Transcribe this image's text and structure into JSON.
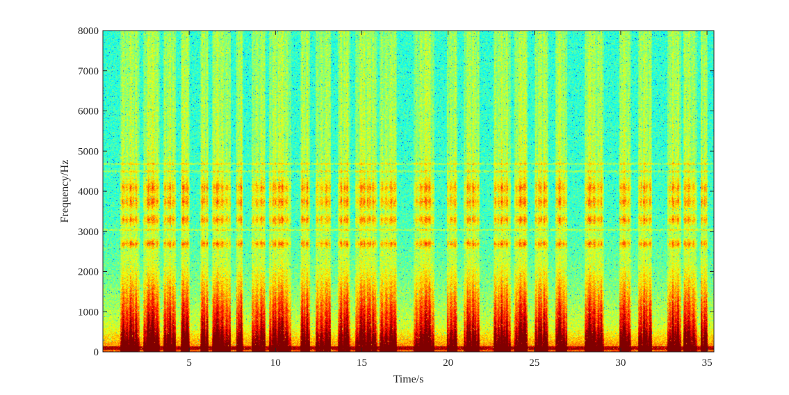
{
  "chart_data": {
    "type": "heatmap",
    "subtype": "spectrogram",
    "title": "",
    "xlabel": "Time/s",
    "ylabel": "Frequency/Hz",
    "xlim": [
      0,
      35.4
    ],
    "ylim": [
      0,
      8000
    ],
    "xticks": [
      5,
      10,
      15,
      20,
      25,
      30,
      35
    ],
    "xtick_labels": [
      "5",
      "10",
      "15",
      "20",
      "25",
      "30",
      "35"
    ],
    "yticks": [
      0,
      1000,
      2000,
      3000,
      4000,
      5000,
      6000,
      7000,
      8000
    ],
    "ytick_labels": [
      "0",
      "1000",
      "2000",
      "3000",
      "4000",
      "5000",
      "6000",
      "7000",
      "8000"
    ],
    "colormap": "jet",
    "grid": false,
    "speech_segments_s": [
      [
        1.0,
        2.1
      ],
      [
        2.3,
        3.3
      ],
      [
        3.5,
        4.2
      ],
      [
        4.5,
        5.0
      ],
      [
        5.6,
        6.1
      ],
      [
        6.3,
        7.4
      ],
      [
        7.7,
        8.1
      ],
      [
        8.6,
        9.4
      ],
      [
        9.6,
        10.9
      ],
      [
        11.4,
        12.0
      ],
      [
        12.3,
        13.2
      ],
      [
        13.6,
        14.3
      ],
      [
        14.6,
        15.9
      ],
      [
        16.0,
        17.0
      ],
      [
        18.0,
        19.2
      ],
      [
        19.9,
        20.5
      ],
      [
        20.9,
        21.8
      ],
      [
        22.6,
        23.6
      ],
      [
        23.8,
        24.6
      ],
      [
        25.0,
        25.8
      ],
      [
        26.2,
        26.9
      ],
      [
        27.9,
        29.0
      ],
      [
        29.9,
        30.6
      ],
      [
        31.0,
        31.8
      ],
      [
        32.7,
        33.5
      ],
      [
        33.6,
        34.4
      ],
      [
        34.6,
        35.0
      ]
    ],
    "harmonic_bands_hz": [
      {
        "center": 4100,
        "width": 300
      },
      {
        "center": 3750,
        "width": 300
      },
      {
        "center": 3300,
        "width": 200
      },
      {
        "center": 2700,
        "width": 150
      }
    ],
    "horizontal_lines_hz": [
      4500,
      4700,
      3050
    ],
    "low_frequency_floor_hz": 150
  }
}
